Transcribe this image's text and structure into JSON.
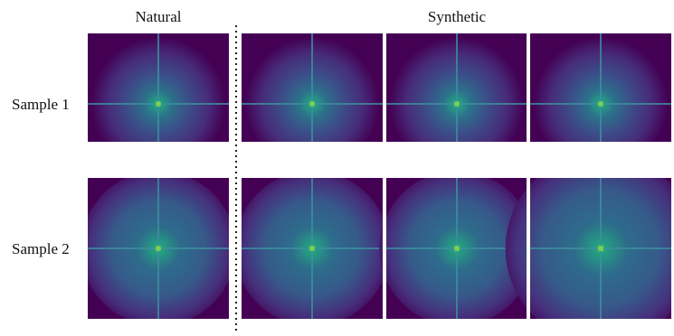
{
  "columns": [
    "Natural",
    "Synthetic"
  ],
  "rows": [
    "Sample 1",
    "Sample 2"
  ]
}
